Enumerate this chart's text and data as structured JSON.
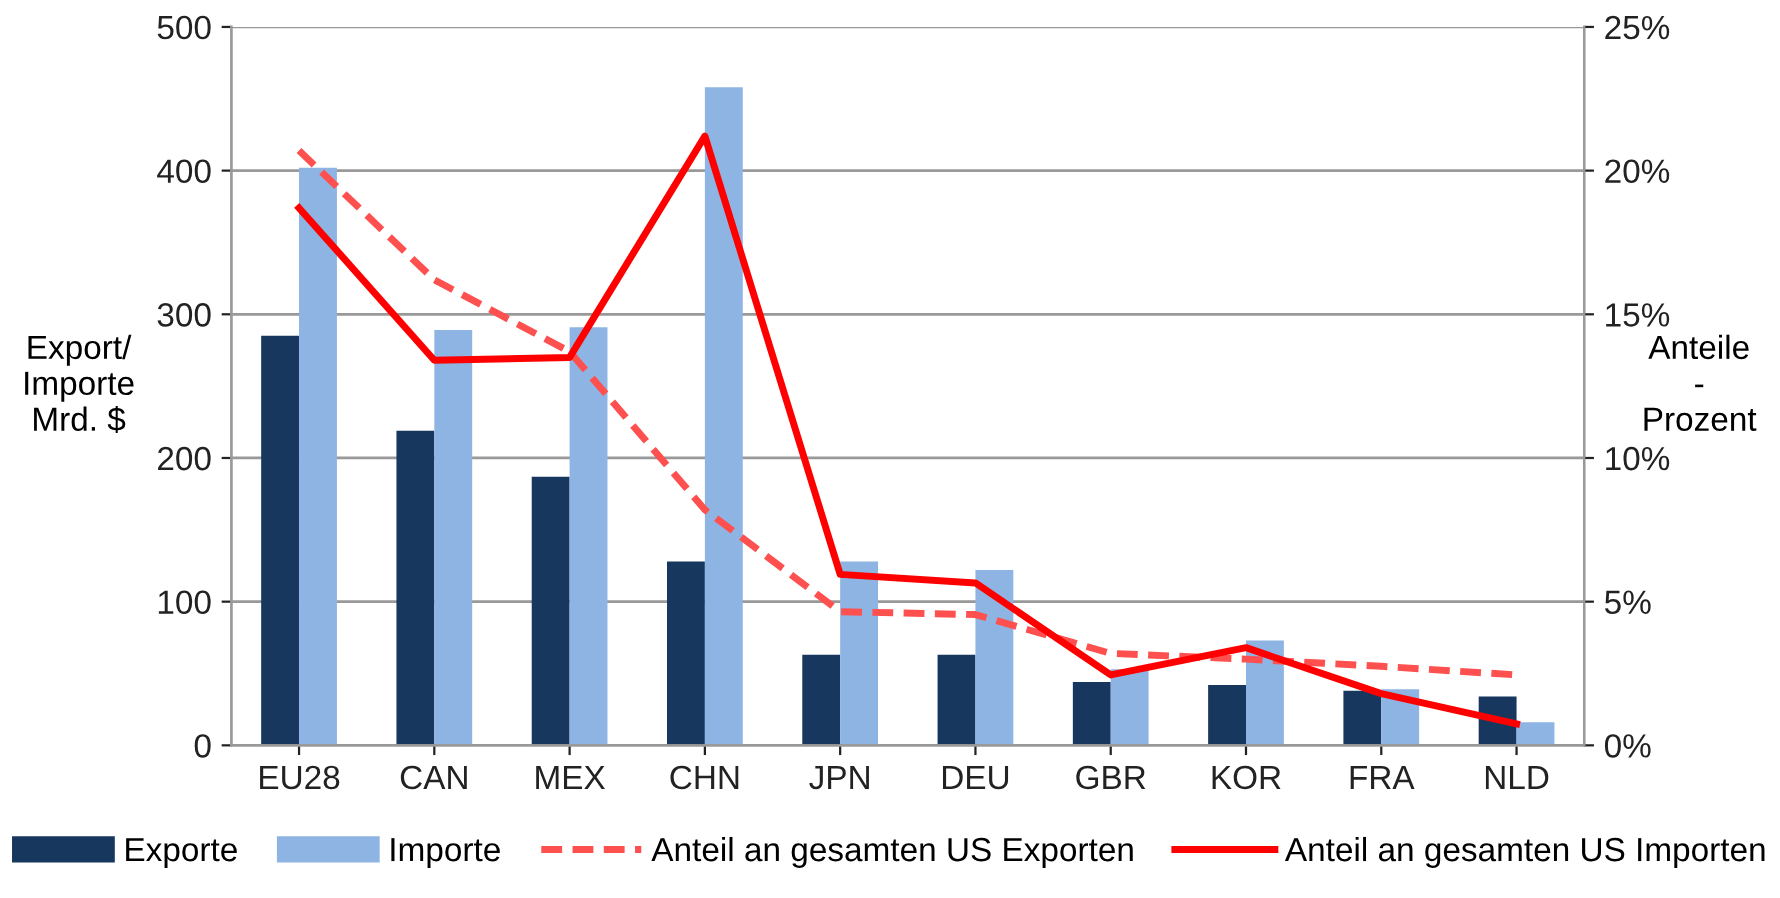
{
  "chart_data": {
    "type": "bar",
    "categories": [
      "EU28",
      "CAN",
      "MEX",
      "CHN",
      "JPN",
      "DEU",
      "GBR",
      "KOR",
      "FRA",
      "NLD"
    ],
    "series": [
      {
        "name": "Exporte",
        "color": "#17375e",
        "values": [
          285,
          219,
          187,
          128,
          63,
          63,
          44,
          42,
          38,
          34
        ]
      },
      {
        "name": "Importe",
        "color": "#8eb4e3",
        "values": [
          402,
          289,
          291,
          458,
          128,
          122,
          53,
          73,
          39,
          16
        ]
      },
      {
        "name": "Anteil an gesamten US Exporten",
        "type": "line",
        "axis": "y2",
        "color": "#ff5050",
        "line_style": "dashed",
        "values": [
          20.7,
          16.2,
          13.7,
          8.2,
          4.65,
          4.55,
          3.2,
          3.0,
          2.75,
          2.45
        ]
      },
      {
        "name": "Anteil an gesamten US Importen",
        "type": "line",
        "axis": "y2",
        "color": "#ff0000",
        "line_style": "solid",
        "values": [
          18.7,
          13.4,
          13.5,
          21.2,
          5.95,
          5.65,
          2.45,
          3.4,
          1.8,
          0.75
        ]
      }
    ],
    "ylabel": "Export/\nImporte\nMrd. $",
    "y2label": "Anteile\n-\nProzent",
    "ylim": [
      0,
      500
    ],
    "yticks": [
      0,
      100,
      200,
      300,
      400,
      500
    ],
    "y2lim": [
      0,
      25
    ],
    "y2ticks": [
      {
        "value": 0,
        "label": "0%"
      },
      {
        "value": 5,
        "label": "5%"
      },
      {
        "value": 10,
        "label": "10%"
      },
      {
        "value": 15,
        "label": "15%"
      },
      {
        "value": 20,
        "label": "20%"
      },
      {
        "value": 25,
        "label": "25%"
      }
    ],
    "grid": "y",
    "legend": "bottom",
    "marker": "none"
  }
}
